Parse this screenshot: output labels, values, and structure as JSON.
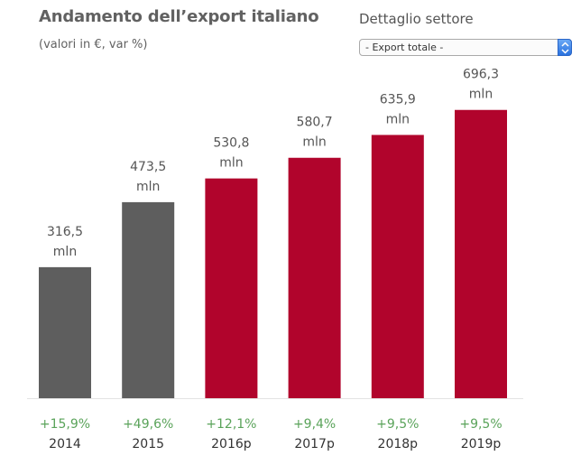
{
  "header": {
    "title": "Andamento dell’export italiano",
    "subtitle": "(valori in €, var %)"
  },
  "sector": {
    "label": "Dettaglio settore",
    "selected": "- Export totale -"
  },
  "colors": {
    "historical": "#5e5e5e",
    "forecast": "#b1042c",
    "growth": "#5aa35a"
  },
  "chart_data": {
    "type": "bar",
    "categories": [
      "2014",
      "2015",
      "2016p",
      "2017p",
      "2018p",
      "2019p"
    ],
    "values": [
      316.5,
      473.5,
      530.8,
      580.7,
      635.9,
      696.3
    ],
    "value_labels": [
      "316,5",
      "473,5",
      "530,8",
      "580,7",
      "635,9",
      "696,3"
    ],
    "value_unit": "mln",
    "growth_labels": [
      "+15,9%",
      "+49,6%",
      "+12,1%",
      "+9,4%",
      "+9,5%",
      "+9,5%"
    ],
    "bar_colors": [
      "#5e5e5e",
      "#5e5e5e",
      "#b1042c",
      "#b1042c",
      "#b1042c",
      "#b1042c"
    ],
    "title": "Andamento dell’export italiano",
    "xlabel": "",
    "ylabel": "",
    "ylim": [
      0,
      734
    ],
    "grid": false
  }
}
